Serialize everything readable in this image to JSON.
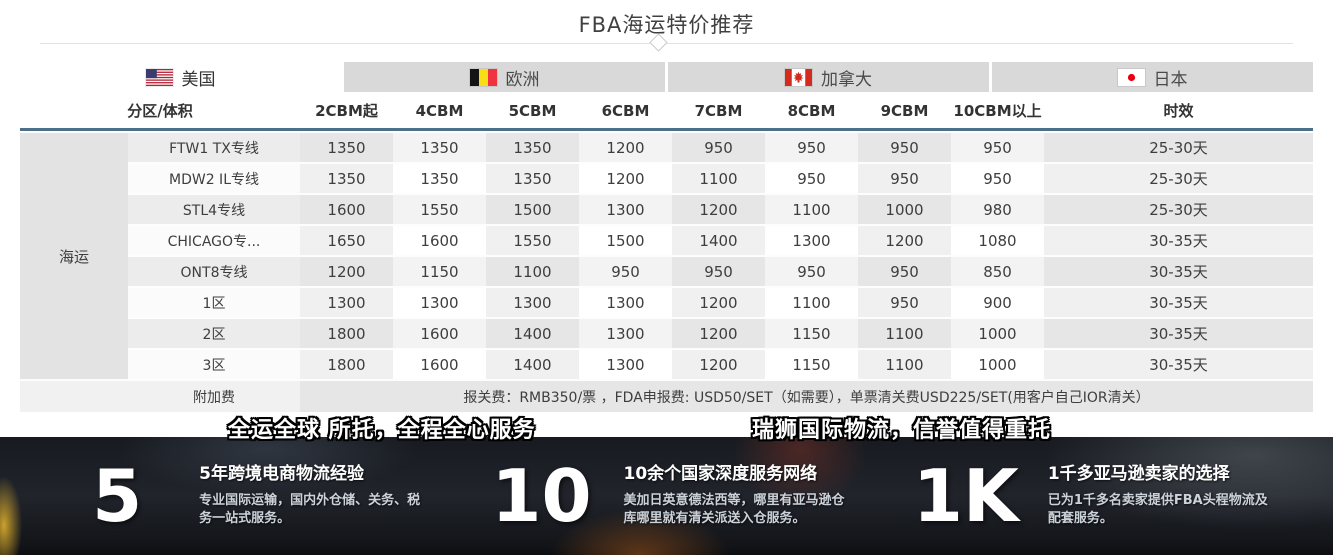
{
  "title": "FBA海运特价推荐",
  "tabs": [
    {
      "label": "美国",
      "flag_icon": "us-flag-icon",
      "active": true
    },
    {
      "label": "欧洲",
      "flag_icon": "belgium-flag-icon",
      "active": false
    },
    {
      "label": "加拿大",
      "flag_icon": "canada-flag-icon",
      "active": false
    },
    {
      "label": "日本",
      "flag_icon": "japan-flag-icon",
      "active": false
    }
  ],
  "table": {
    "group_label": "海运",
    "headers": [
      "分区/体积",
      "2CBM起",
      "4CBM",
      "5CBM",
      "6CBM",
      "7CBM",
      "8CBM",
      "9CBM",
      "10CBM以上",
      "时效"
    ],
    "rows": [
      {
        "label": "FTW1 TX专线",
        "values": [
          "1350",
          "1350",
          "1350",
          "1200",
          "950",
          "950",
          "950",
          "950"
        ],
        "leadtime": "25-30天"
      },
      {
        "label": "MDW2 IL专线",
        "values": [
          "1350",
          "1350",
          "1350",
          "1200",
          "1100",
          "950",
          "950",
          "950"
        ],
        "leadtime": "25-30天"
      },
      {
        "label": "STL4专线",
        "values": [
          "1600",
          "1550",
          "1500",
          "1300",
          "1200",
          "1100",
          "1000",
          "980"
        ],
        "leadtime": "25-30天"
      },
      {
        "label": "CHICAGO专...",
        "values": [
          "1650",
          "1600",
          "1550",
          "1500",
          "1400",
          "1300",
          "1200",
          "1080"
        ],
        "leadtime": "30-35天"
      },
      {
        "label": "ONT8专线",
        "values": [
          "1200",
          "1150",
          "1100",
          "950",
          "950",
          "950",
          "950",
          "850"
        ],
        "leadtime": "30-35天"
      },
      {
        "label": "1区",
        "values": [
          "1300",
          "1300",
          "1300",
          "1300",
          "1200",
          "1100",
          "950",
          "900"
        ],
        "leadtime": "30-35天"
      },
      {
        "label": "2区",
        "values": [
          "1800",
          "1600",
          "1400",
          "1300",
          "1200",
          "1150",
          "1100",
          "1000"
        ],
        "leadtime": "30-35天"
      },
      {
        "label": "3区",
        "values": [
          "1800",
          "1600",
          "1400",
          "1300",
          "1200",
          "1150",
          "1100",
          "1000"
        ],
        "leadtime": "30-35天"
      }
    ],
    "surcharge": {
      "label": "附加费",
      "text": "报关费：RMB350/票 ，FDA申报费: USD50/SET（如需要），单票清关费USD225/SET(用客户自己IOR清关）"
    }
  },
  "slogans": [
    "全运全球 所托，全程全心服务",
    "瑞狮国际物流，信誉值得重托"
  ],
  "stats": [
    {
      "number": "5",
      "heading": "5年跨境电商物流经验",
      "body": "专业国际运输，国内外仓储、关务、税务一站式服务。"
    },
    {
      "number": "10",
      "heading": "10余个国家深度服务网络",
      "body": "美加日英意德法西等，哪里有亚马逊仓库哪里就有清关派送入仓服务。"
    },
    {
      "number": "1K",
      "heading": "1千多亚马逊卖家的选择",
      "body": "已为1千多名卖家提供FBA头程物流及配套服务。"
    }
  ],
  "colors": {
    "header_underline": "#4c7089",
    "tab_inactive_bg": "#d9d9d9",
    "group_cell_bg": "#e3e3e3",
    "banner_bg": "#1a1d23",
    "table_text": "#3e3e3e"
  }
}
